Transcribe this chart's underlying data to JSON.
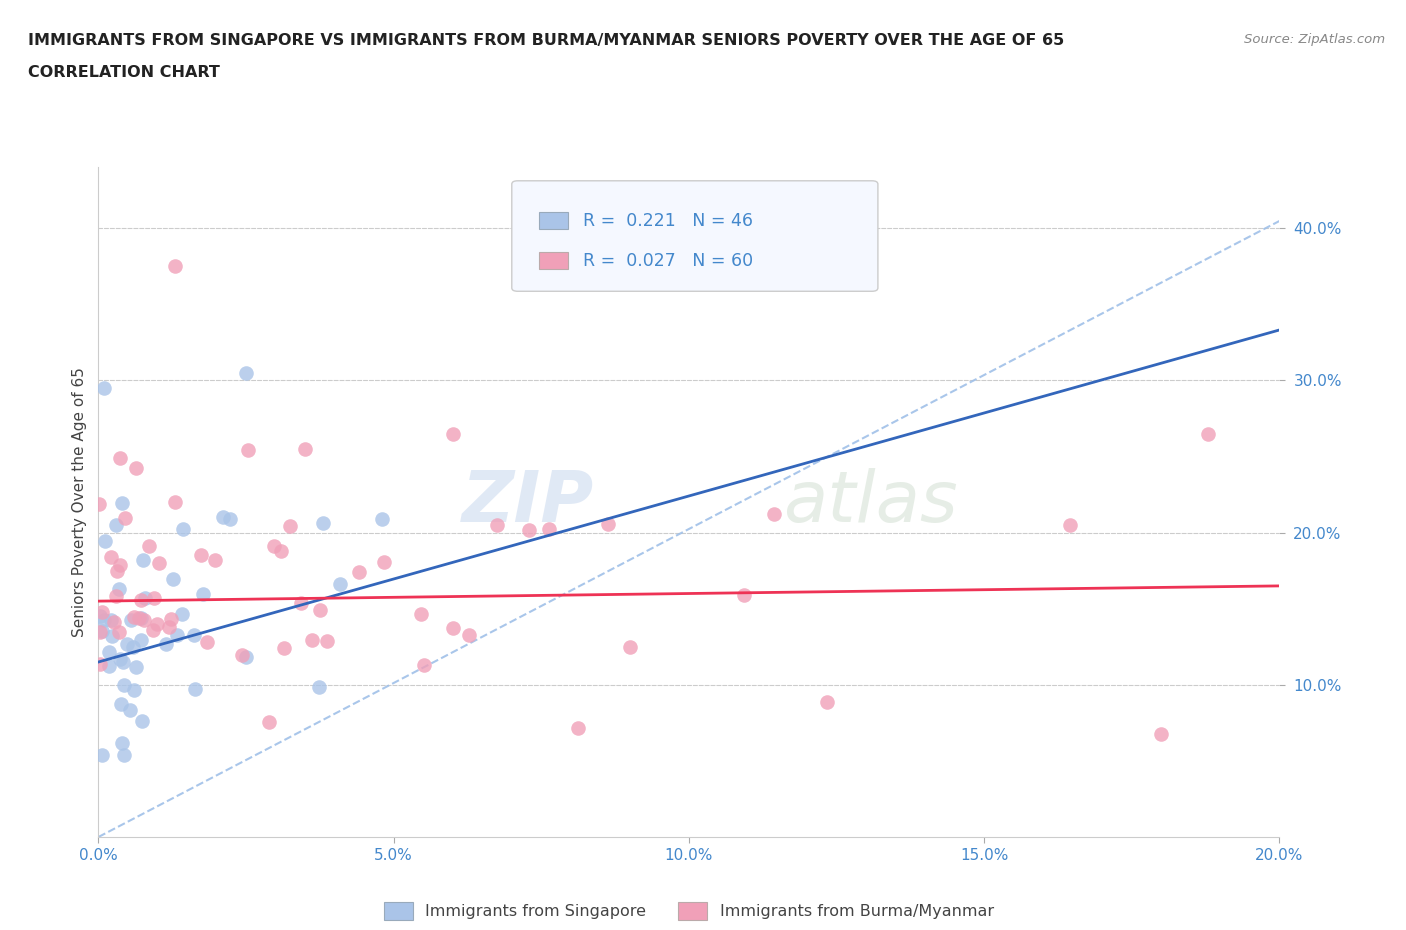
{
  "title_line1": "IMMIGRANTS FROM SINGAPORE VS IMMIGRANTS FROM BURMA/MYANMAR SENIORS POVERTY OVER THE AGE OF 65",
  "title_line2": "CORRELATION CHART",
  "source_text": "Source: ZipAtlas.com",
  "ylabel": "Seniors Poverty Over the Age of 65",
  "xlim": [
    0.0,
    0.2
  ],
  "ylim": [
    0.0,
    0.44
  ],
  "xtick_vals": [
    0.0,
    0.05,
    0.1,
    0.15,
    0.2
  ],
  "xtick_labels": [
    "0.0%",
    "5.0%",
    "10.0%",
    "15.0%",
    "20.0%"
  ],
  "ytick_vals": [
    0.1,
    0.2,
    0.3,
    0.4
  ],
  "ytick_labels": [
    "10.0%",
    "20.0%",
    "30.0%",
    "40.0%"
  ],
  "singapore_color": "#aac4e8",
  "burma_color": "#f0a0b8",
  "singapore_line_color": "#3366bb",
  "burma_line_color": "#ee3355",
  "diag_line_color": "#a0c0e8",
  "grid_color": "#cccccc",
  "R_singapore": 0.221,
  "N_singapore": 46,
  "R_burma": 0.027,
  "N_burma": 60,
  "background_color": "#ffffff",
  "tick_color": "#4488cc",
  "watermark_zip": "ZIP",
  "watermark_atlas": "atlas",
  "legend_face": "#f5f8ff",
  "legend_edge": "#cccccc"
}
